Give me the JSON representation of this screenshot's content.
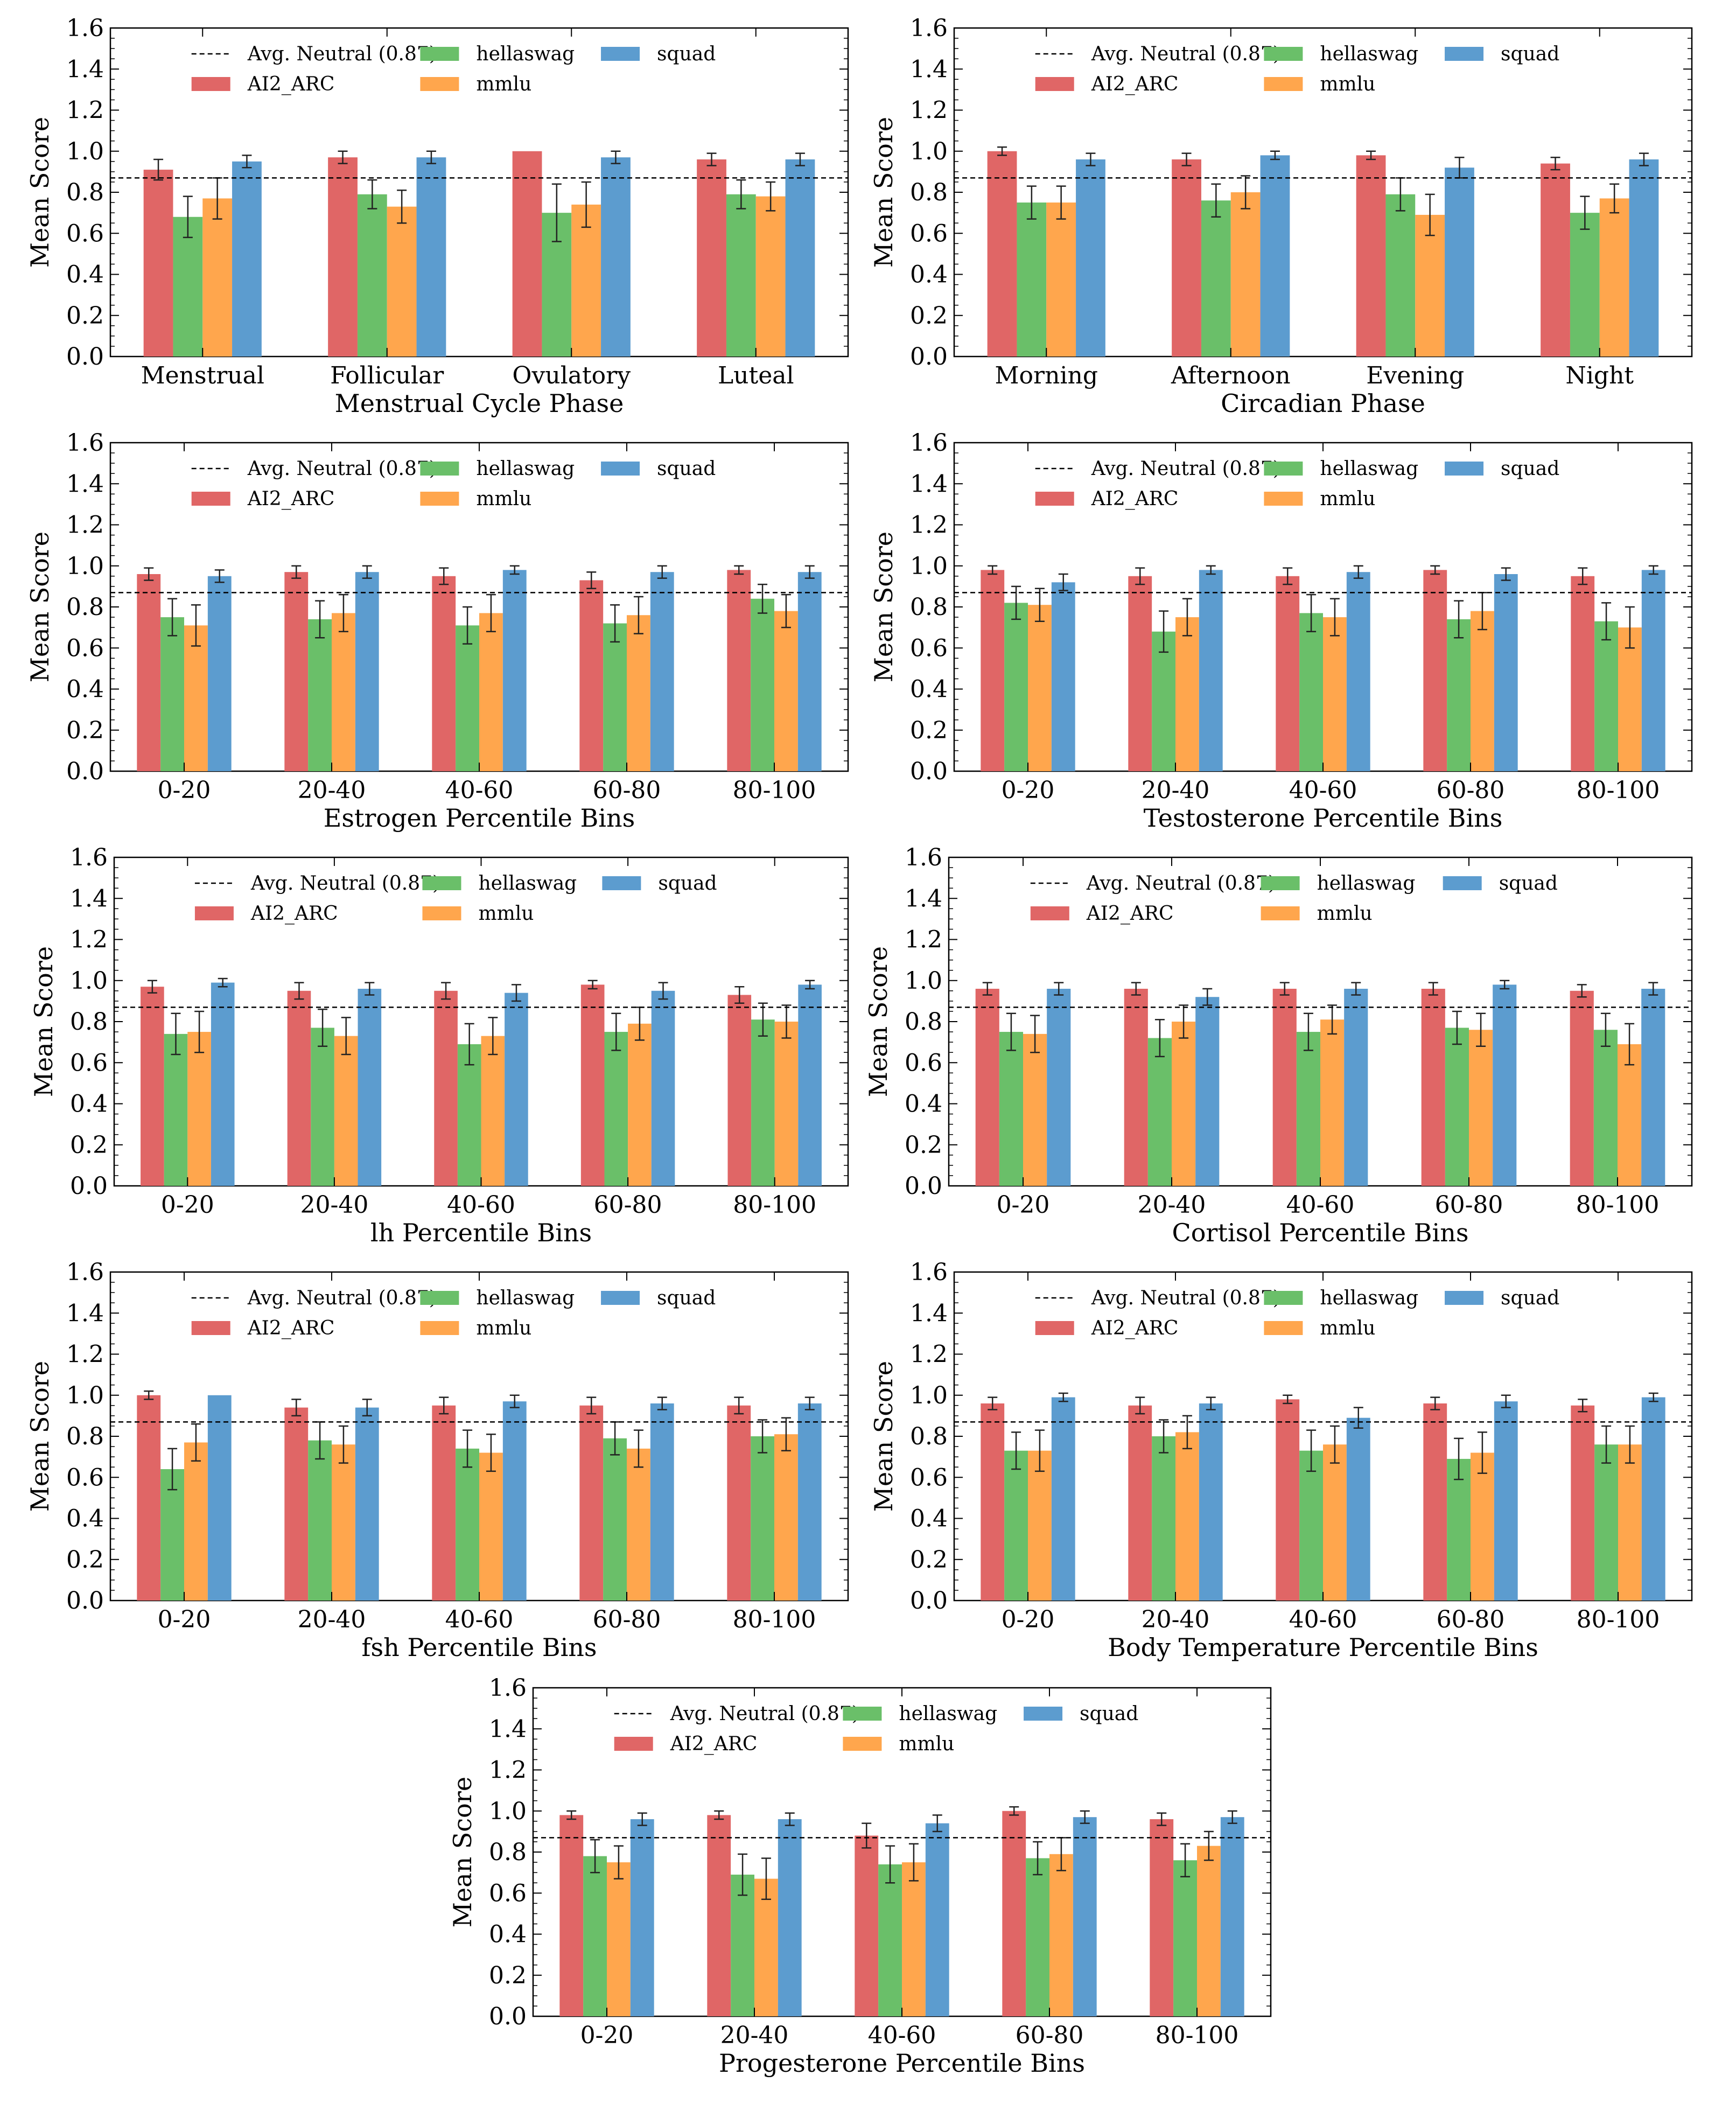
{
  "y_axis": {
    "label": "Mean Score",
    "ticks": [
      "0.0",
      "0.2",
      "0.4",
      "0.6",
      "0.8",
      "1.0",
      "1.2",
      "1.4",
      "1.6"
    ],
    "ylim": [
      0,
      1.6
    ]
  },
  "neutral_line": {
    "value": 0.87,
    "label": "Avg. Neutral (0.87)"
  },
  "legend": [
    {
      "key": "AI2_ARC",
      "label": "AI2_ARC",
      "color": "#e06666"
    },
    {
      "key": "hellaswag",
      "label": "hellaswag",
      "color": "#6abf69"
    },
    {
      "key": "mmlu",
      "label": "mmlu",
      "color": "#ffa64d"
    },
    {
      "key": "squad",
      "label": "squad",
      "color": "#5c9ccf"
    }
  ],
  "chart_data": [
    {
      "type": "bar",
      "xlabel": "Menstrual Cycle Phase",
      "ylabel": "Mean Score",
      "ylim": [
        0,
        1.6
      ],
      "categories": [
        "Menstrual",
        "Follicular",
        "Ovulatory",
        "Luteal"
      ],
      "series": [
        {
          "name": "AI2_ARC",
          "values": [
            0.91,
            0.97,
            1.0,
            0.96
          ],
          "errors": [
            0.05,
            0.03,
            0.0,
            0.03
          ]
        },
        {
          "name": "hellaswag",
          "values": [
            0.68,
            0.79,
            0.7,
            0.79
          ],
          "errors": [
            0.1,
            0.07,
            0.14,
            0.07
          ]
        },
        {
          "name": "mmlu",
          "values": [
            0.77,
            0.73,
            0.74,
            0.78
          ],
          "errors": [
            0.1,
            0.08,
            0.11,
            0.07
          ]
        },
        {
          "name": "squad",
          "values": [
            0.95,
            0.97,
            0.97,
            0.96
          ],
          "errors": [
            0.03,
            0.03,
            0.03,
            0.03
          ]
        }
      ]
    },
    {
      "type": "bar",
      "xlabel": "Circadian Phase",
      "ylabel": "Mean Score",
      "ylim": [
        0,
        1.6
      ],
      "categories": [
        "Morning",
        "Afternoon",
        "Evening",
        "Night"
      ],
      "series": [
        {
          "name": "AI2_ARC",
          "values": [
            1.0,
            0.96,
            0.98,
            0.94
          ],
          "errors": [
            0.02,
            0.03,
            0.02,
            0.03
          ]
        },
        {
          "name": "hellaswag",
          "values": [
            0.75,
            0.76,
            0.79,
            0.7
          ],
          "errors": [
            0.08,
            0.08,
            0.08,
            0.08
          ]
        },
        {
          "name": "mmlu",
          "values": [
            0.75,
            0.8,
            0.69,
            0.77
          ],
          "errors": [
            0.08,
            0.08,
            0.1,
            0.07
          ]
        },
        {
          "name": "squad",
          "values": [
            0.96,
            0.98,
            0.92,
            0.96
          ],
          "errors": [
            0.03,
            0.02,
            0.05,
            0.03
          ]
        }
      ]
    },
    {
      "type": "bar",
      "xlabel": "Estrogen Percentile Bins",
      "ylabel": "Mean Score",
      "ylim": [
        0,
        1.6
      ],
      "categories": [
        "0-20",
        "20-40",
        "40-60",
        "60-80",
        "80-100"
      ],
      "series": [
        {
          "name": "AI2_ARC",
          "values": [
            0.96,
            0.97,
            0.95,
            0.93,
            0.98
          ],
          "errors": [
            0.03,
            0.03,
            0.04,
            0.04,
            0.02
          ]
        },
        {
          "name": "hellaswag",
          "values": [
            0.75,
            0.74,
            0.71,
            0.72,
            0.84
          ],
          "errors": [
            0.09,
            0.09,
            0.09,
            0.09,
            0.07
          ]
        },
        {
          "name": "mmlu",
          "values": [
            0.71,
            0.77,
            0.77,
            0.76,
            0.78
          ],
          "errors": [
            0.1,
            0.09,
            0.09,
            0.09,
            0.08
          ]
        },
        {
          "name": "squad",
          "values": [
            0.95,
            0.97,
            0.98,
            0.97,
            0.97
          ],
          "errors": [
            0.03,
            0.03,
            0.02,
            0.03,
            0.03
          ]
        }
      ]
    },
    {
      "type": "bar",
      "xlabel": "Testosterone Percentile Bins",
      "ylabel": "Mean Score",
      "ylim": [
        0,
        1.6
      ],
      "categories": [
        "0-20",
        "20-40",
        "40-60",
        "60-80",
        "80-100"
      ],
      "series": [
        {
          "name": "AI2_ARC",
          "values": [
            0.98,
            0.95,
            0.95,
            0.98,
            0.95
          ],
          "errors": [
            0.02,
            0.04,
            0.04,
            0.02,
            0.04
          ]
        },
        {
          "name": "hellaswag",
          "values": [
            0.82,
            0.68,
            0.77,
            0.74,
            0.73
          ],
          "errors": [
            0.08,
            0.1,
            0.09,
            0.09,
            0.09
          ]
        },
        {
          "name": "mmlu",
          "values": [
            0.81,
            0.75,
            0.75,
            0.78,
            0.7
          ],
          "errors": [
            0.08,
            0.09,
            0.09,
            0.09,
            0.1
          ]
        },
        {
          "name": "squad",
          "values": [
            0.92,
            0.98,
            0.97,
            0.96,
            0.98
          ],
          "errors": [
            0.04,
            0.02,
            0.03,
            0.03,
            0.02
          ]
        }
      ]
    },
    {
      "type": "bar",
      "xlabel": "lh Percentile Bins",
      "ylabel": "Mean Score",
      "ylim": [
        0,
        1.6
      ],
      "categories": [
        "0-20",
        "20-40",
        "40-60",
        "60-80",
        "80-100"
      ],
      "series": [
        {
          "name": "AI2_ARC",
          "values": [
            0.97,
            0.95,
            0.95,
            0.98,
            0.93
          ],
          "errors": [
            0.03,
            0.04,
            0.04,
            0.02,
            0.04
          ]
        },
        {
          "name": "hellaswag",
          "values": [
            0.74,
            0.77,
            0.69,
            0.75,
            0.81
          ],
          "errors": [
            0.1,
            0.09,
            0.1,
            0.09,
            0.08
          ]
        },
        {
          "name": "mmlu",
          "values": [
            0.75,
            0.73,
            0.73,
            0.79,
            0.8
          ],
          "errors": [
            0.1,
            0.09,
            0.09,
            0.08,
            0.08
          ]
        },
        {
          "name": "squad",
          "values": [
            0.99,
            0.96,
            0.94,
            0.95,
            0.98
          ],
          "errors": [
            0.02,
            0.03,
            0.04,
            0.04,
            0.02
          ]
        }
      ]
    },
    {
      "type": "bar",
      "xlabel": "Cortisol Percentile Bins",
      "ylabel": "Mean Score",
      "ylim": [
        0,
        1.6
      ],
      "categories": [
        "0-20",
        "20-40",
        "40-60",
        "60-80",
        "80-100"
      ],
      "series": [
        {
          "name": "AI2_ARC",
          "values": [
            0.96,
            0.96,
            0.96,
            0.96,
            0.95
          ],
          "errors": [
            0.03,
            0.03,
            0.03,
            0.03,
            0.03
          ]
        },
        {
          "name": "hellaswag",
          "values": [
            0.75,
            0.72,
            0.75,
            0.77,
            0.76
          ],
          "errors": [
            0.09,
            0.09,
            0.09,
            0.08,
            0.08
          ]
        },
        {
          "name": "mmlu",
          "values": [
            0.74,
            0.8,
            0.81,
            0.76,
            0.69
          ],
          "errors": [
            0.09,
            0.08,
            0.07,
            0.08,
            0.1
          ]
        },
        {
          "name": "squad",
          "values": [
            0.96,
            0.92,
            0.96,
            0.98,
            0.96
          ],
          "errors": [
            0.03,
            0.04,
            0.03,
            0.02,
            0.03
          ]
        }
      ]
    },
    {
      "type": "bar",
      "xlabel": "fsh Percentile Bins",
      "ylabel": "Mean Score",
      "ylim": [
        0,
        1.6
      ],
      "categories": [
        "0-20",
        "20-40",
        "40-60",
        "60-80",
        "80-100"
      ],
      "series": [
        {
          "name": "AI2_ARC",
          "values": [
            1.0,
            0.94,
            0.95,
            0.95,
            0.95
          ],
          "errors": [
            0.02,
            0.04,
            0.04,
            0.04,
            0.04
          ]
        },
        {
          "name": "hellaswag",
          "values": [
            0.64,
            0.78,
            0.74,
            0.79,
            0.8
          ],
          "errors": [
            0.1,
            0.09,
            0.09,
            0.08,
            0.08
          ]
        },
        {
          "name": "mmlu",
          "values": [
            0.77,
            0.76,
            0.72,
            0.74,
            0.81
          ],
          "errors": [
            0.09,
            0.09,
            0.09,
            0.09,
            0.08
          ]
        },
        {
          "name": "squad",
          "values": [
            1.0,
            0.94,
            0.97,
            0.96,
            0.96
          ],
          "errors": [
            0.0,
            0.04,
            0.03,
            0.03,
            0.03
          ]
        }
      ]
    },
    {
      "type": "bar",
      "xlabel": "Body Temperature Percentile Bins",
      "ylabel": "Mean Score",
      "ylim": [
        0,
        1.6
      ],
      "categories": [
        "0-20",
        "20-40",
        "40-60",
        "60-80",
        "80-100"
      ],
      "series": [
        {
          "name": "AI2_ARC",
          "values": [
            0.96,
            0.95,
            0.98,
            0.96,
            0.95
          ],
          "errors": [
            0.03,
            0.04,
            0.02,
            0.03,
            0.03
          ]
        },
        {
          "name": "hellaswag",
          "values": [
            0.73,
            0.8,
            0.73,
            0.69,
            0.76
          ],
          "errors": [
            0.09,
            0.08,
            0.1,
            0.1,
            0.09
          ]
        },
        {
          "name": "mmlu",
          "values": [
            0.73,
            0.82,
            0.76,
            0.72,
            0.76
          ],
          "errors": [
            0.1,
            0.08,
            0.09,
            0.1,
            0.09
          ]
        },
        {
          "name": "squad",
          "values": [
            0.99,
            0.96,
            0.89,
            0.97,
            0.99
          ],
          "errors": [
            0.02,
            0.03,
            0.05,
            0.03,
            0.02
          ]
        }
      ]
    },
    {
      "type": "bar",
      "xlabel": "Progesterone Percentile Bins",
      "ylabel": "Mean Score",
      "ylim": [
        0,
        1.6
      ],
      "categories": [
        "0-20",
        "20-40",
        "40-60",
        "60-80",
        "80-100"
      ],
      "series": [
        {
          "name": "AI2_ARC",
          "values": [
            0.98,
            0.98,
            0.88,
            1.0,
            0.96
          ],
          "errors": [
            0.02,
            0.02,
            0.06,
            0.02,
            0.03
          ]
        },
        {
          "name": "hellaswag",
          "values": [
            0.78,
            0.69,
            0.74,
            0.77,
            0.76
          ],
          "errors": [
            0.08,
            0.1,
            0.09,
            0.08,
            0.08
          ]
        },
        {
          "name": "mmlu",
          "values": [
            0.75,
            0.67,
            0.75,
            0.79,
            0.83
          ],
          "errors": [
            0.08,
            0.1,
            0.09,
            0.08,
            0.07
          ]
        },
        {
          "name": "squad",
          "values": [
            0.96,
            0.96,
            0.94,
            0.97,
            0.97
          ],
          "errors": [
            0.03,
            0.03,
            0.04,
            0.03,
            0.03
          ]
        }
      ]
    }
  ]
}
